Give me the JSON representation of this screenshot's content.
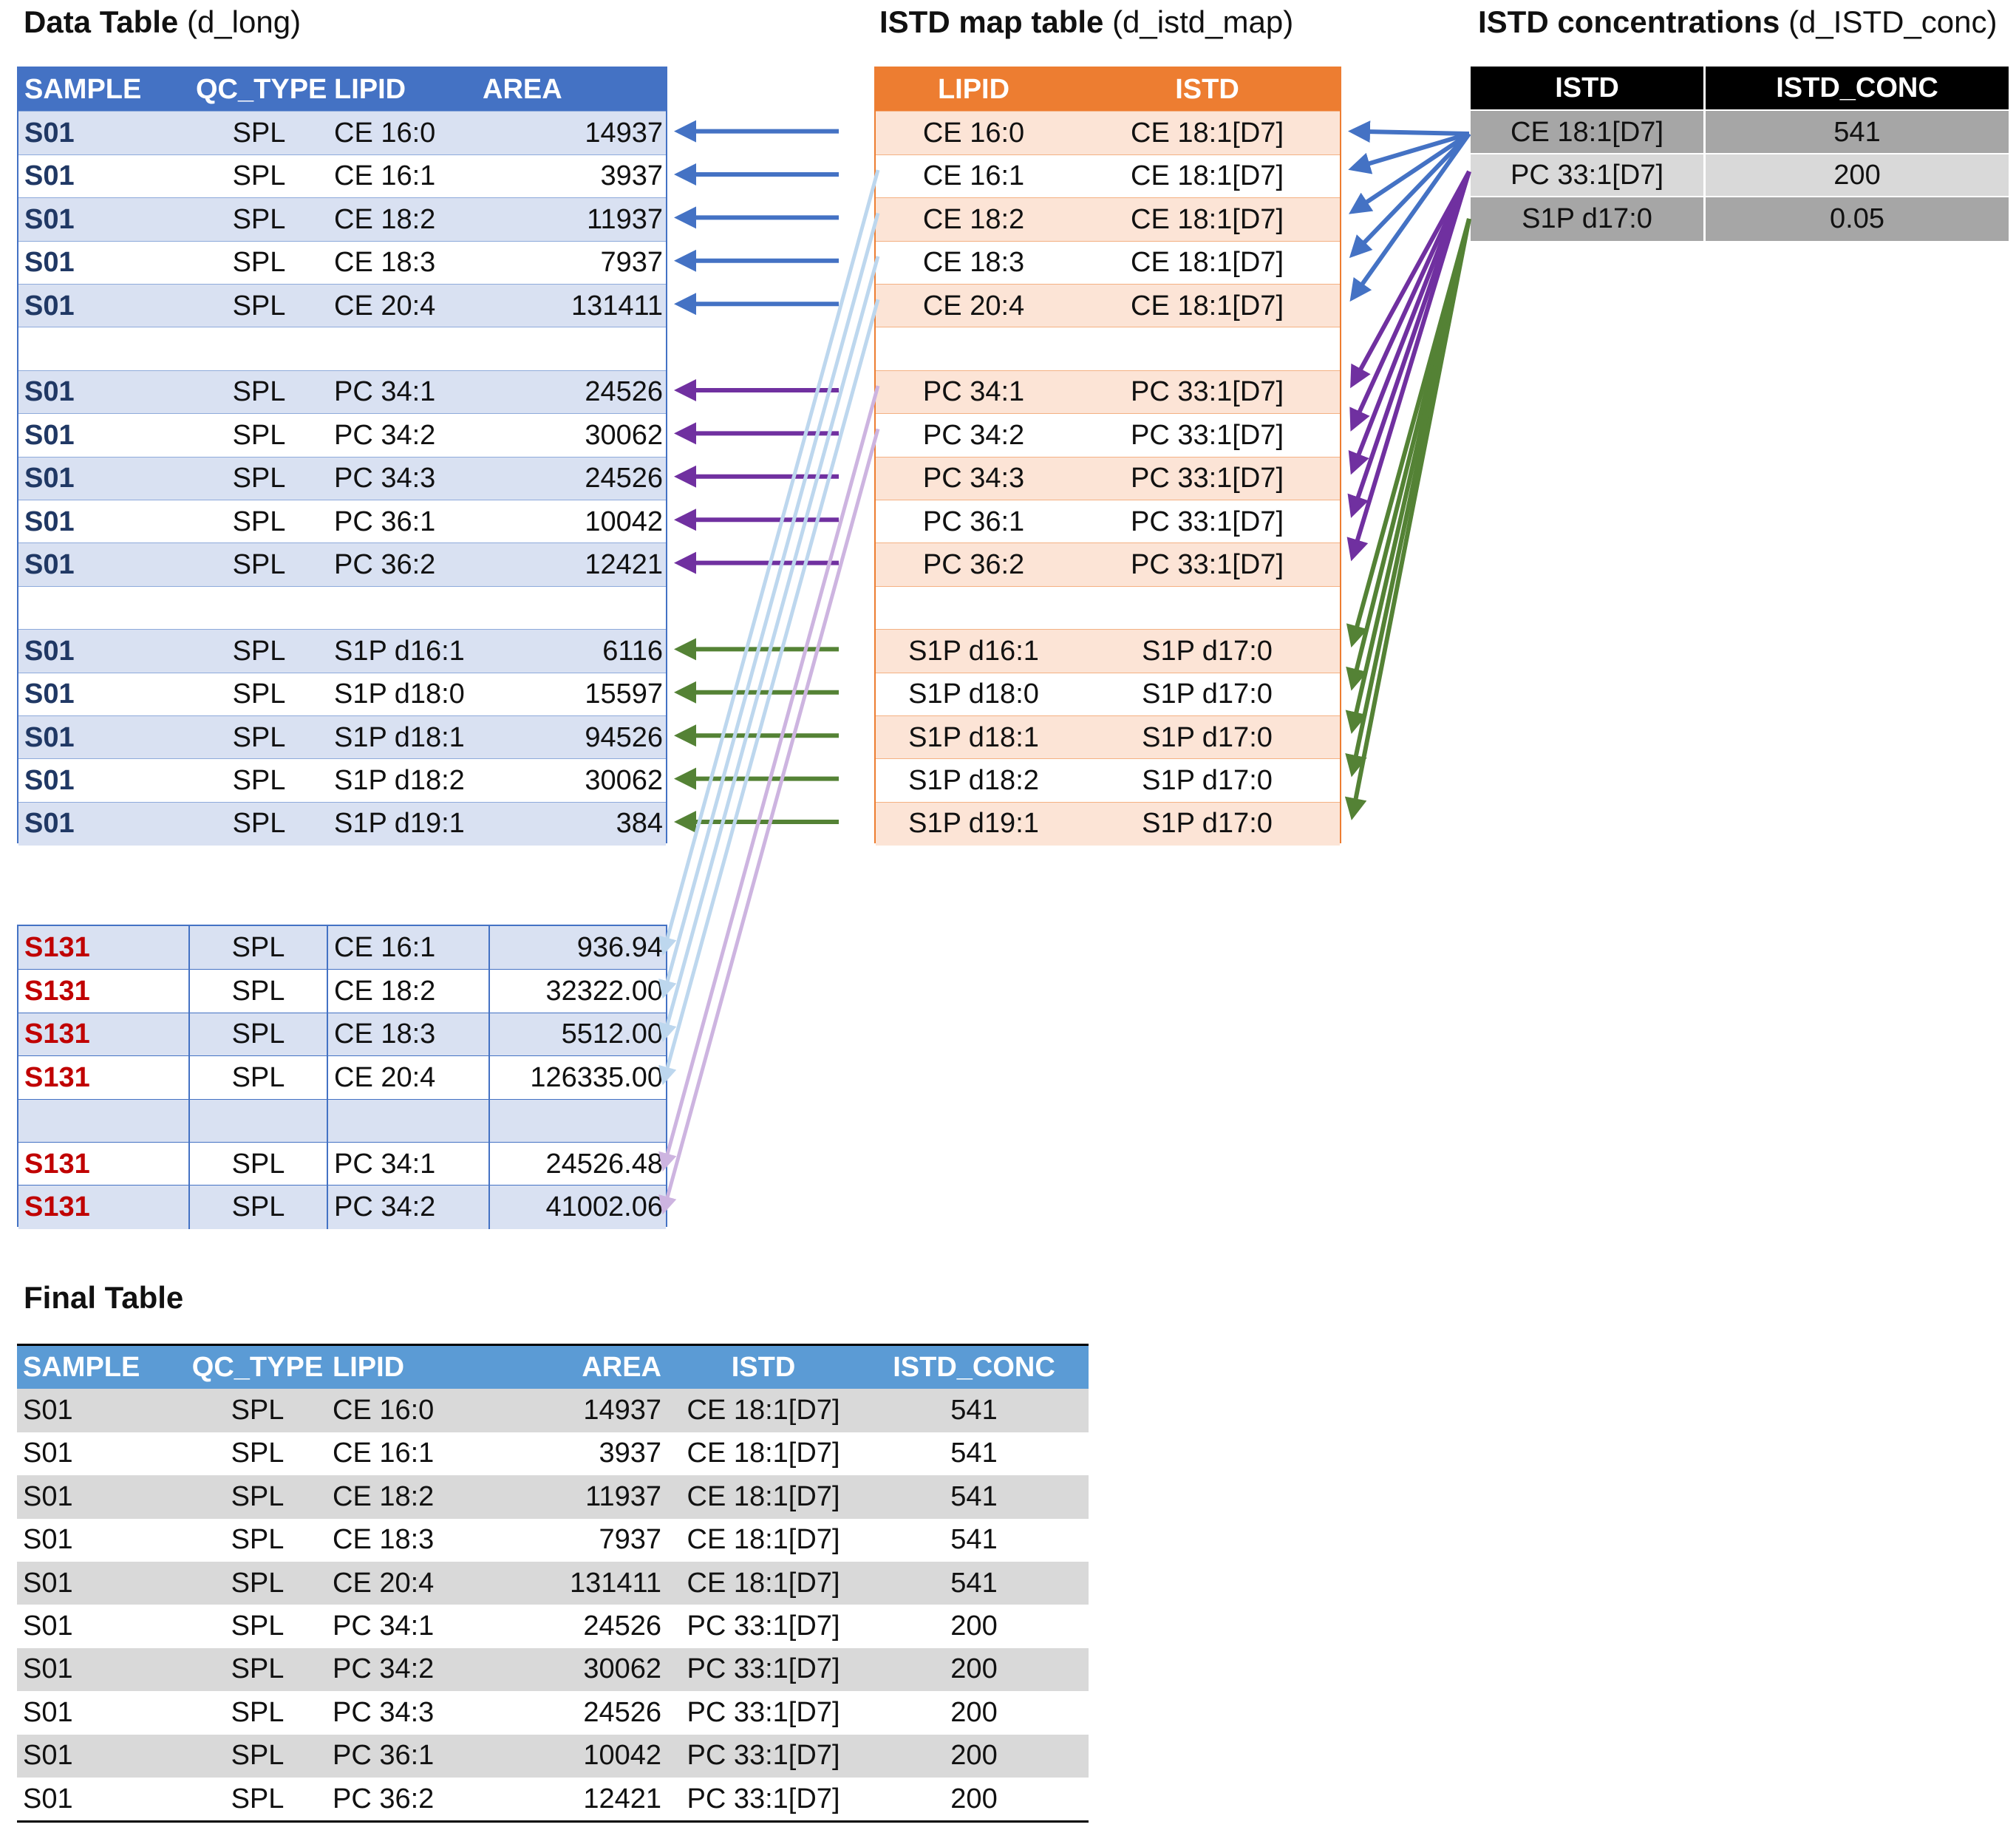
{
  "titles": {
    "data_table_bold": "Data Table",
    "data_table_rest": " (d_long)",
    "map_table_bold": "ISTD map table",
    "map_table_rest": " (d_istd_map)",
    "conc_table_bold": "ISTD concentrations",
    "conc_table_rest": " (d_ISTD_conc)",
    "final_table_bold": "Final Table"
  },
  "colors": {
    "data_header": "#4472c4",
    "data_band": "#d9e1f2",
    "data_sample_text": "#203864",
    "s131_text": "#c00000",
    "map_header": "#ed7d31",
    "map_band": "#fce4d6",
    "conc_header": "#000000",
    "conc_dark": "#a6a6a6",
    "conc_light": "#d9d9d9",
    "final_header": "#5b9bd5",
    "final_band": "#d9d9d9",
    "arrow_ce": "#4472c4",
    "arrow_pc": "#7030a0",
    "arrow_s1p": "#548235",
    "arrow_light_blue": "#bdd7ee",
    "arrow_light_purple": "#cdb4e0"
  },
  "data_table": {
    "headers": [
      "SAMPLE",
      "QC_TYPE",
      "LIPID",
      "AREA"
    ],
    "rows": [
      [
        "S01",
        "SPL",
        "CE 16:0",
        "14937"
      ],
      [
        "S01",
        "SPL",
        "CE 16:1",
        "3937"
      ],
      [
        "S01",
        "SPL",
        "CE 18:2",
        "11937"
      ],
      [
        "S01",
        "SPL",
        "CE 18:3",
        "7937"
      ],
      [
        "S01",
        "SPL",
        "CE 20:4",
        "131411"
      ],
      [
        "",
        "",
        "",
        ""
      ],
      [
        "S01",
        "SPL",
        "PC 34:1",
        "24526"
      ],
      [
        "S01",
        "SPL",
        "PC 34:2",
        "30062"
      ],
      [
        "S01",
        "SPL",
        "PC 34:3",
        "24526"
      ],
      [
        "S01",
        "SPL",
        "PC 36:1",
        "10042"
      ],
      [
        "S01",
        "SPL",
        "PC 36:2",
        "12421"
      ],
      [
        "",
        "",
        "",
        ""
      ],
      [
        "S01",
        "SPL",
        "S1P d16:1",
        "6116"
      ],
      [
        "S01",
        "SPL",
        "S1P d18:0",
        "15597"
      ],
      [
        "S01",
        "SPL",
        "S1P d18:1",
        "94526"
      ],
      [
        "S01",
        "SPL",
        "S1P d18:2",
        "30062"
      ],
      [
        "S01",
        "SPL",
        "S1P d19:1",
        "384"
      ]
    ]
  },
  "data_table_s131": {
    "rows": [
      [
        "S131",
        "SPL",
        "CE 16:1",
        "936.94"
      ],
      [
        "S131",
        "SPL",
        "CE 18:2",
        "32322.00"
      ],
      [
        "S131",
        "SPL",
        "CE 18:3",
        "5512.00"
      ],
      [
        "S131",
        "SPL",
        "CE 20:4",
        "126335.00"
      ],
      [
        "",
        "",
        "",
        ""
      ],
      [
        "S131",
        "SPL",
        "PC 34:1",
        "24526.48"
      ],
      [
        "S131",
        "SPL",
        "PC 34:2",
        "41002.06"
      ]
    ]
  },
  "map_table": {
    "headers": [
      "LIPID",
      "ISTD"
    ],
    "rows": [
      [
        "CE 16:0",
        "CE 18:1[D7]"
      ],
      [
        "CE 16:1",
        "CE 18:1[D7]"
      ],
      [
        "CE 18:2",
        "CE 18:1[D7]"
      ],
      [
        "CE 18:3",
        "CE 18:1[D7]"
      ],
      [
        "CE 20:4",
        "CE 18:1[D7]"
      ],
      [
        "",
        ""
      ],
      [
        "PC 34:1",
        "PC 33:1[D7]"
      ],
      [
        "PC 34:2",
        "PC 33:1[D7]"
      ],
      [
        "PC 34:3",
        "PC 33:1[D7]"
      ],
      [
        "PC 36:1",
        "PC 33:1[D7]"
      ],
      [
        "PC 36:2",
        "PC 33:1[D7]"
      ],
      [
        "",
        ""
      ],
      [
        "S1P d16:1",
        "S1P d17:0"
      ],
      [
        "S1P d18:0",
        "S1P d17:0"
      ],
      [
        "S1P d18:1",
        "S1P d17:0"
      ],
      [
        "S1P d18:2",
        "S1P d17:0"
      ],
      [
        "S1P d19:1",
        "S1P d17:0"
      ]
    ]
  },
  "conc_table": {
    "headers": [
      "ISTD",
      "ISTD_CONC"
    ],
    "rows": [
      [
        "CE 18:1[D7]",
        "541"
      ],
      [
        "PC 33:1[D7]",
        "200"
      ],
      [
        "S1P d17:0",
        "0.05"
      ]
    ]
  },
  "final_table": {
    "headers": [
      "SAMPLE",
      "QC_TYPE",
      "LIPID",
      "AREA",
      "ISTD",
      "ISTD_CONC"
    ],
    "rows": [
      [
        "S01",
        "SPL",
        "CE 16:0",
        "14937",
        "CE 18:1[D7]",
        "541"
      ],
      [
        "S01",
        "SPL",
        "CE 16:1",
        "3937",
        "CE 18:1[D7]",
        "541"
      ],
      [
        "S01",
        "SPL",
        "CE 18:2",
        "11937",
        "CE 18:1[D7]",
        "541"
      ],
      [
        "S01",
        "SPL",
        "CE 18:3",
        "7937",
        "CE 18:1[D7]",
        "541"
      ],
      [
        "S01",
        "SPL",
        "CE 20:4",
        "131411",
        "CE 18:1[D7]",
        "541"
      ],
      [
        "S01",
        "SPL",
        "PC 34:1",
        "24526",
        "PC 33:1[D7]",
        "200"
      ],
      [
        "S01",
        "SPL",
        "PC 34:2",
        "30062",
        "PC 33:1[D7]",
        "200"
      ],
      [
        "S01",
        "SPL",
        "PC 34:3",
        "24526",
        "PC 33:1[D7]",
        "200"
      ],
      [
        "S01",
        "SPL",
        "PC 36:1",
        "10042",
        "PC 33:1[D7]",
        "200"
      ],
      [
        "S01",
        "SPL",
        "PC 36:2",
        "12421",
        "PC 33:1[D7]",
        "200"
      ]
    ]
  }
}
